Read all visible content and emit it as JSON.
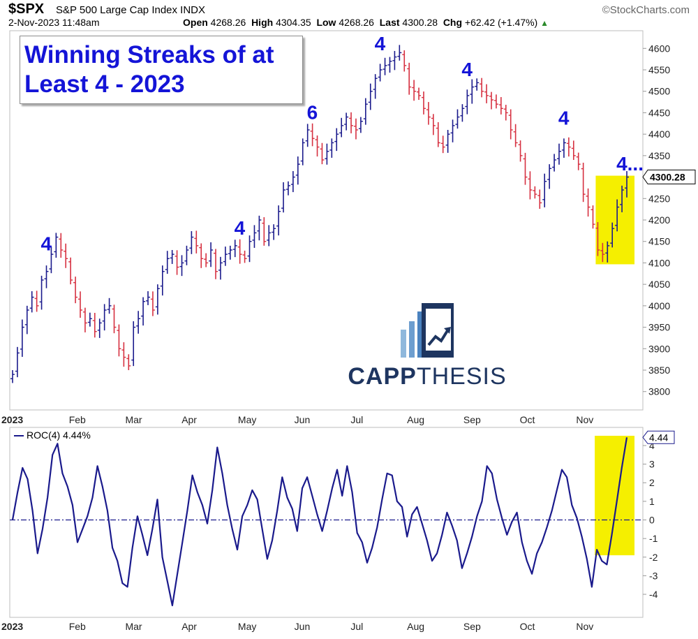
{
  "header": {
    "symbol": "$SPX",
    "index_name": "S&P 500 Large Cap Index INDX",
    "brand": "©StockCharts.com",
    "datetime": "2-Nov-2023 11:48am",
    "open_label": "Open",
    "open": "4268.26",
    "high_label": "High",
    "high": "4304.35",
    "low_label": "Low",
    "low": "4268.26",
    "last_label": "Last",
    "last": "4300.28",
    "chg_label": "Chg",
    "chg": "+62.42 (+1.47%)"
  },
  "annotation_title": "Winning Streaks of at Least 4 - 2023",
  "logo": {
    "text_bold": "CAPP",
    "text_light": "THESIS"
  },
  "colors": {
    "up": "#1a1a8c",
    "down": "#d63040",
    "annotation": "#1414d7",
    "highlight": "#f5ef00",
    "roc_line": "#1a1a8c"
  },
  "chart_data": [
    {
      "type": "ohlc",
      "ylim": [
        3780,
        4620
      ],
      "y_ticks": [
        "4600",
        "4550",
        "4500",
        "4450",
        "4400",
        "4350",
        "4300",
        "4250",
        "4200",
        "4150",
        "4100",
        "4050",
        "4000",
        "3950",
        "3900",
        "3850",
        "3800"
      ],
      "x_labels": [
        "2023",
        "Feb",
        "Mar",
        "Apr",
        "May",
        "Jun",
        "Jul",
        "Aug",
        "Sep",
        "Oct",
        "Nov"
      ],
      "last_value_label": "4300.28",
      "streak_labels": [
        "4",
        "4",
        "6",
        "4",
        "4",
        "4",
        "4..."
      ],
      "close_series": [
        3840,
        3890,
        3950,
        3990,
        4020,
        4000,
        4060,
        4080,
        4120,
        4160,
        4130,
        4110,
        4060,
        4020,
        3990,
        3960,
        3970,
        3940,
        3960,
        3990,
        4000,
        3950,
        3900,
        3880,
        3860,
        3950,
        3970,
        4010,
        4020,
        3990,
        4040,
        4080,
        4110,
        4120,
        4090,
        4100,
        4130,
        4160,
        4140,
        4110,
        4100,
        4130,
        4080,
        4100,
        4120,
        4130,
        4140,
        4120,
        4110,
        4150,
        4170,
        4200,
        4150,
        4170,
        4180,
        4220,
        4270,
        4280,
        4300,
        4330,
        4380,
        4410,
        4390,
        4370,
        4340,
        4360,
        4380,
        4400,
        4420,
        4440,
        4420,
        4410,
        4430,
        4470,
        4500,
        4530,
        4550,
        4560,
        4570,
        4580,
        4590,
        4560,
        4510,
        4500,
        4490,
        4460,
        4440,
        4420,
        4380,
        4370,
        4400,
        4420,
        4440,
        4460,
        4490,
        4510,
        4520,
        4500,
        4490,
        4480,
        4470,
        4460,
        4450,
        4410,
        4380,
        4350,
        4300,
        4270,
        4260,
        4240,
        4290,
        4320,
        4340,
        4360,
        4380,
        4370,
        4350,
        4330,
        4260,
        4230,
        4190,
        4130,
        4120,
        4140,
        4180,
        4230,
        4270,
        4300
      ],
      "highlight_range": [
        4100,
        4300
      ]
    },
    {
      "type": "line",
      "series": [
        {
          "name": "ROC(4) 4.44%",
          "values": [
            0,
            1.5,
            2.8,
            2.2,
            0.5,
            -1.8,
            -0.5,
            1.2,
            3.5,
            4.1,
            2.5,
            1.8,
            0.8,
            -1.2,
            -0.5,
            0.2,
            1.2,
            2.9,
            1.8,
            0.5,
            -1.5,
            -2.2,
            -3.4,
            -3.6,
            -1.5,
            0.2,
            -0.8,
            -1.9,
            -0.5,
            1.1,
            -2.0,
            -3.3,
            -4.6,
            -2.9,
            -1.2,
            0.5,
            2.4,
            1.5,
            0.8,
            -0.2,
            1.6,
            3.9,
            2.5,
            0.8,
            -0.5,
            -1.6,
            0.2,
            0.8,
            1.6,
            1.1,
            -0.5,
            -2.1,
            -1.1,
            0.5,
            2.3,
            1.2,
            0.6,
            -0.6,
            1.7,
            2.3,
            1.3,
            0.3,
            -0.6,
            0.5,
            1.7,
            2.7,
            1.3,
            2.9,
            1.5,
            -0.7,
            -1.2,
            -2.3,
            -1.5,
            -0.4,
            1.1,
            2.5,
            2.4,
            1.0,
            0.7,
            -0.9,
            0.3,
            0.7,
            -0.2,
            -1.1,
            -2.2,
            -1.8,
            -0.8,
            0.4,
            -0.3,
            -1.1,
            -2.6,
            -1.8,
            -0.9,
            0.2,
            1.0,
            2.9,
            2.5,
            1.1,
            0.1,
            -0.8,
            -0.1,
            0.4,
            -1.2,
            -2.2,
            -2.9,
            -1.8,
            -1.2,
            -0.4,
            0.5,
            1.6,
            2.7,
            2.3,
            0.8,
            0.1,
            -0.9,
            -2.1,
            -3.6,
            -1.6,
            -2.2,
            -2.4,
            -0.8,
            1.0,
            2.8,
            4.44
          ]
        }
      ],
      "ylim": [
        -4.9,
        4.6
      ],
      "y_ticks": [
        "4",
        "3",
        "2",
        "1",
        "0",
        "-1",
        "-2",
        "-3",
        "-4"
      ],
      "x_labels": [
        "2023",
        "Feb",
        "Mar",
        "Apr",
        "May",
        "Jun",
        "Jul",
        "Aug",
        "Sep",
        "Oct",
        "Nov"
      ],
      "last_value_label": "4.44",
      "legend": "ROC(4) 4.44%"
    }
  ]
}
